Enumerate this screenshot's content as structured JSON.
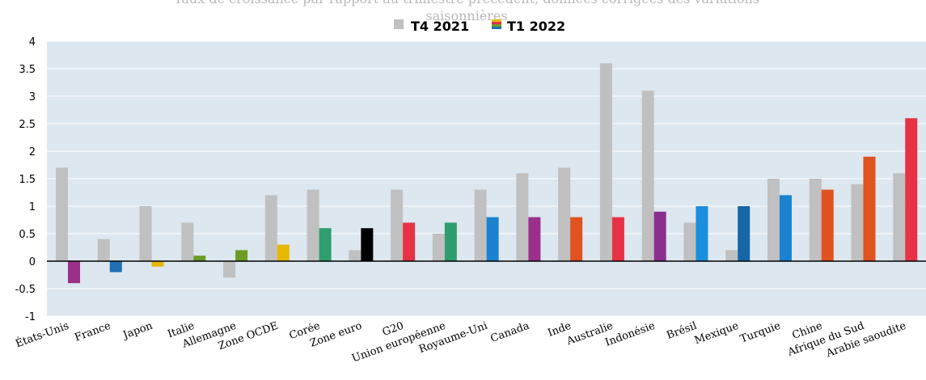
{
  "colors": {
    "plot_bg": "#dce7ef",
    "grid": "#ffffff",
    "zero_line": "#000000",
    "t4_bar": "#c0c0c0"
  },
  "chart_data": {
    "type": "bar",
    "subtitle_line1": "Taux de croissance par rapport au trimestre précédent, données corrigées des variations",
    "subtitle_line2": "saisonnières",
    "legend_position": "top-center",
    "grid": true,
    "ylim": [
      -1,
      4
    ],
    "yticks": [
      "-1",
      "-0.5",
      "0",
      "0.5",
      "1",
      "1.5",
      "2",
      "2.5",
      "3",
      "3.5",
      "4"
    ],
    "categories": [
      "États-Unis",
      "France",
      "Japon",
      "Italie",
      "Allemagne",
      "Zone OCDE",
      "Corée",
      "Zone euro",
      "G20",
      "Union européenne",
      "Royaume-Uni",
      "Canada",
      "Inde",
      "Australie",
      "Indonésie",
      "Brésil",
      "Mexique",
      "Turquie",
      "Chine",
      "Afrique du Sud",
      "Arabie saoudite"
    ],
    "series": [
      {
        "name": "T4 2021",
        "values": [
          1.7,
          0.4,
          1.0,
          0.7,
          -0.3,
          1.2,
          1.3,
          0.2,
          1.3,
          0.5,
          1.3,
          1.6,
          1.7,
          3.6,
          3.1,
          0.7,
          0.2,
          1.5,
          1.5,
          1.4,
          1.6
        ],
        "color": "#c0c0c0"
      },
      {
        "name": "T1 2022",
        "values": [
          -0.4,
          -0.2,
          -0.1,
          0.1,
          0.2,
          0.3,
          0.6,
          0.6,
          0.7,
          0.7,
          0.8,
          0.8,
          0.8,
          0.8,
          0.9,
          1.0,
          1.0,
          1.2,
          1.3,
          1.9,
          2.6
        ],
        "colors": [
          "#9b2f8a",
          "#1f6fb5",
          "#e6b800",
          "#6b9d23",
          "#6b9d23",
          "#e6b800",
          "#2e9e6e",
          "#000000",
          "#e63244",
          "#2e9e6e",
          "#1b82d1",
          "#9b2f8a",
          "#e0521f",
          "#e63244",
          "#8b2f8f",
          "#1b8fdd",
          "#1766a8",
          "#1b82d1",
          "#e0521f",
          "#e0521f",
          "#e63244"
        ]
      }
    ]
  }
}
